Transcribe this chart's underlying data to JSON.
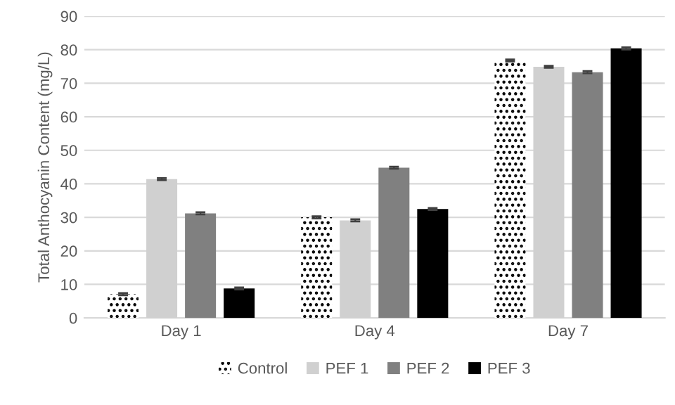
{
  "chart_data": {
    "type": "bar",
    "ylabel": "Total Anthocyanin Content (mg/L)",
    "categories": [
      "Day 1",
      "Day 4",
      "Day 7"
    ],
    "series": [
      {
        "name": "Control",
        "color": "#ffffff",
        "values": [
          7.1,
          30.0,
          76.8
        ],
        "errors": [
          0.3,
          0.3,
          0.3
        ]
      },
      {
        "name": "PEF 1",
        "color": "#d0d0d0",
        "values": [
          41.4,
          29.1,
          74.9
        ],
        "errors": [
          0.3,
          0.3,
          0.3
        ]
      },
      {
        "name": "PEF 2",
        "color": "#808080",
        "values": [
          31.2,
          44.8,
          73.3
        ],
        "errors": [
          0.3,
          0.3,
          0.3
        ]
      },
      {
        "name": "PEF 3",
        "color": "#000000",
        "values": [
          8.8,
          32.5,
          80.4
        ],
        "errors": [
          0.3,
          0.3,
          0.3
        ]
      }
    ],
    "ylim": [
      0,
      90
    ],
    "yticks": [
      0,
      10,
      20,
      30,
      40,
      50,
      60,
      70,
      80,
      90
    ],
    "grid": "y",
    "legend": "bottom"
  }
}
